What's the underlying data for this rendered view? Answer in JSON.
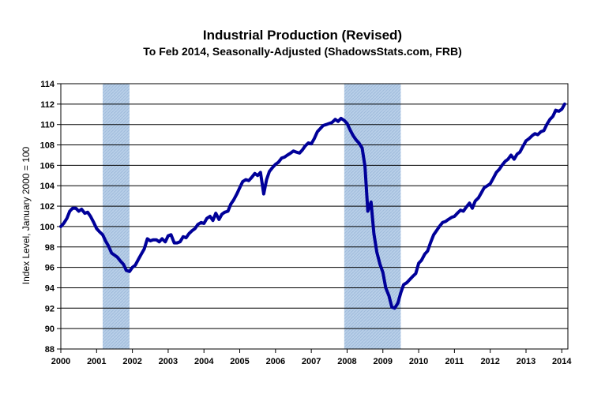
{
  "chart_data": {
    "type": "line",
    "title": "Industrial Production (Revised)",
    "subtitle": "To Feb 2014, Seasonally-Adjusted (ShadowsStats.com, FRB)",
    "xlabel": "",
    "ylabel": "Index Level, January 2000 = 100",
    "xlim": [
      2000,
      2014.17
    ],
    "ylim": [
      88,
      114
    ],
    "y_ticks": [
      88,
      90,
      92,
      94,
      96,
      98,
      100,
      102,
      104,
      106,
      108,
      110,
      112,
      114
    ],
    "x_ticks": [
      "2000",
      "2001",
      "2002",
      "2003",
      "2004",
      "2005",
      "2006",
      "2007",
      "2008",
      "2009",
      "2010",
      "2011",
      "2012",
      "2013",
      "2014"
    ],
    "grid": "horizontal",
    "legend": "none",
    "recession_shading": [
      {
        "start": 2001.17,
        "end": 2001.92
      },
      {
        "start": 2007.92,
        "end": 2009.5
      }
    ],
    "line_color": "#000099",
    "recession_color": "#b8cfe8",
    "series": [
      {
        "x": [
          2000.0,
          2000.08,
          2000.17,
          2000.25,
          2000.33,
          2000.42,
          2000.5,
          2000.58,
          2000.67,
          2000.75,
          2000.83,
          2000.92,
          2001.0,
          2001.08,
          2001.17,
          2001.25,
          2001.33,
          2001.42,
          2001.5,
          2001.58,
          2001.67,
          2001.75,
          2001.83,
          2001.92,
          2002.0,
          2002.08,
          2002.17,
          2002.25,
          2002.33,
          2002.42,
          2002.5,
          2002.58,
          2002.67,
          2002.75,
          2002.83,
          2002.92,
          2003.0,
          2003.08,
          2003.17,
          2003.25,
          2003.33,
          2003.42,
          2003.5,
          2003.58,
          2003.67,
          2003.75,
          2003.83,
          2003.92,
          2004.0,
          2004.08,
          2004.17,
          2004.25,
          2004.33,
          2004.42,
          2004.5,
          2004.58,
          2004.67,
          2004.75,
          2004.83,
          2004.92,
          2005.0,
          2005.08,
          2005.17,
          2005.25,
          2005.33,
          2005.42,
          2005.5,
          2005.58,
          2005.67,
          2005.75,
          2005.83,
          2005.92,
          2006.0,
          2006.08,
          2006.17,
          2006.25,
          2006.33,
          2006.42,
          2006.5,
          2006.58,
          2006.67,
          2006.75,
          2006.83,
          2006.92,
          2007.0,
          2007.08,
          2007.17,
          2007.25,
          2007.33,
          2007.42,
          2007.5,
          2007.58,
          2007.67,
          2007.75,
          2007.83,
          2007.92,
          2008.0,
          2008.08,
          2008.17,
          2008.25,
          2008.33,
          2008.42,
          2008.5,
          2008.58,
          2008.67,
          2008.75,
          2008.83,
          2008.92,
          2009.0,
          2009.08,
          2009.17,
          2009.25,
          2009.33,
          2009.42,
          2009.5,
          2009.58,
          2009.67,
          2009.75,
          2009.83,
          2009.92,
          2010.0,
          2010.08,
          2010.17,
          2010.25,
          2010.33,
          2010.42,
          2010.5,
          2010.58,
          2010.67,
          2010.75,
          2010.83,
          2010.92,
          2011.0,
          2011.08,
          2011.17,
          2011.25,
          2011.33,
          2011.42,
          2011.5,
          2011.58,
          2011.67,
          2011.75,
          2011.83,
          2011.92,
          2012.0,
          2012.08,
          2012.17,
          2012.25,
          2012.33,
          2012.42,
          2012.5,
          2012.58,
          2012.67,
          2012.75,
          2012.83,
          2012.92,
          2013.0,
          2013.08,
          2013.17,
          2013.25,
          2013.33,
          2013.42,
          2013.5,
          2013.58,
          2013.67,
          2013.75,
          2013.83,
          2013.92,
          2014.0,
          2014.08
        ],
        "values": [
          100.0,
          100.3,
          100.8,
          101.5,
          101.8,
          101.8,
          101.5,
          101.7,
          101.3,
          101.4,
          101.0,
          100.4,
          99.8,
          99.5,
          99.2,
          98.6,
          98.1,
          97.4,
          97.2,
          97.0,
          96.6,
          96.3,
          95.7,
          95.6,
          96.0,
          96.2,
          96.8,
          97.3,
          97.8,
          98.8,
          98.6,
          98.7,
          98.7,
          98.5,
          98.8,
          98.5,
          99.1,
          99.2,
          98.4,
          98.4,
          98.5,
          99.0,
          98.9,
          99.3,
          99.6,
          99.8,
          100.2,
          100.4,
          100.3,
          100.8,
          101.0,
          100.6,
          101.3,
          100.7,
          101.2,
          101.4,
          101.5,
          102.2,
          102.6,
          103.2,
          103.8,
          104.4,
          104.6,
          104.5,
          104.8,
          105.2,
          105.0,
          105.3,
          103.2,
          104.6,
          105.4,
          105.8,
          106.1,
          106.3,
          106.7,
          106.8,
          107.0,
          107.2,
          107.4,
          107.3,
          107.2,
          107.5,
          107.9,
          108.2,
          108.1,
          108.6,
          109.3,
          109.6,
          109.9,
          110.0,
          110.1,
          110.2,
          110.5,
          110.3,
          110.6,
          110.4,
          110.1,
          109.5,
          108.9,
          108.5,
          108.2,
          107.7,
          105.9,
          101.5,
          102.4,
          99.3,
          97.5,
          96.3,
          95.5,
          94.0,
          93.2,
          92.1,
          92.0,
          92.5,
          93.5,
          94.3,
          94.5,
          94.8,
          95.1,
          95.4,
          96.4,
          96.7,
          97.3,
          97.6,
          98.4,
          99.2,
          99.6,
          100.0,
          100.4,
          100.5,
          100.7,
          100.9,
          101.0,
          101.3,
          101.6,
          101.5,
          101.9,
          102.3,
          101.8,
          102.5,
          102.8,
          103.3,
          103.8,
          104.0,
          104.2,
          104.7,
          105.3,
          105.6,
          106.0,
          106.4,
          106.6,
          107.0,
          106.6,
          107.1,
          107.3,
          107.9,
          108.4,
          108.6,
          108.9,
          109.1,
          109.0,
          109.3,
          109.4,
          110.0,
          110.5,
          110.8,
          111.4,
          111.3,
          111.5,
          112.0
        ]
      }
    ]
  }
}
